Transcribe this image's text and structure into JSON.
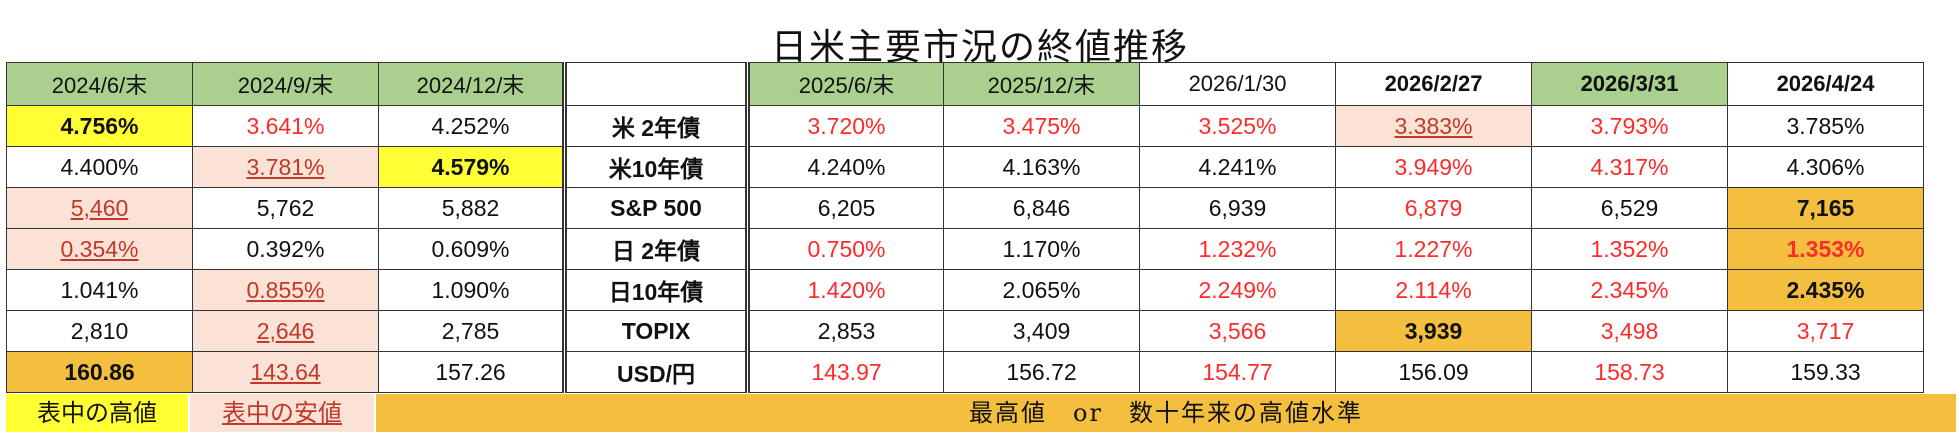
{
  "title": "日米主要市況の終値推移",
  "headers": [
    "2024/6/末",
    "2024/9/末",
    "2024/12/末",
    "",
    "2025/6/末",
    "2025/12/末",
    "2026/1/30",
    "2026/2/27",
    "2026/3/31",
    "2026/4/24"
  ],
  "rows": [
    {
      "label": "米 2年債",
      "values": [
        "4.756%",
        "3.641%",
        "4.252%",
        "3.720%",
        "3.475%",
        "3.525%",
        "3.383%",
        "3.793%",
        "3.785%"
      ]
    },
    {
      "label": "米10年債",
      "values": [
        "4.400%",
        "3.781%",
        "4.579%",
        "4.240%",
        "4.163%",
        "4.241%",
        "3.949%",
        "4.317%",
        "4.306%"
      ]
    },
    {
      "label": "S&P 500",
      "values": [
        "5,460",
        "5,762",
        "5,882",
        "6,205",
        "6,846",
        "6,939",
        "6,879",
        "6,529",
        "7,165"
      ]
    },
    {
      "label": "日 2年債",
      "values": [
        "0.354%",
        "0.392%",
        "0.609%",
        "0.750%",
        "1.170%",
        "1.232%",
        "1.227%",
        "1.352%",
        "1.353%"
      ]
    },
    {
      "label": "日10年債",
      "values": [
        "1.041%",
        "0.855%",
        "1.090%",
        "1.420%",
        "2.065%",
        "2.249%",
        "2.114%",
        "2.345%",
        "2.435%"
      ]
    },
    {
      "label": "TOPIX",
      "values": [
        "2,810",
        "2,646",
        "2,785",
        "2,853",
        "3,409",
        "3,566",
        "3,939",
        "3,498",
        "3,717"
      ]
    },
    {
      "label": "USD/円",
      "values": [
        "160.86",
        "143.64",
        "157.26",
        "143.97",
        "156.72",
        "154.77",
        "156.09",
        "158.73",
        "159.33"
      ]
    }
  ],
  "legend": {
    "high": "表中の高値",
    "low": "表中の安値",
    "record": "最高値　or　数十年来の高値水準"
  },
  "colors": {
    "header_green": "#a9d08e",
    "highlight_high": "#ffff33",
    "highlight_low": "#fbe2d6",
    "highlight_record": "#f4bf3f",
    "red_text": "#ff2a2a",
    "navy_label": "#1f3a8a"
  }
}
